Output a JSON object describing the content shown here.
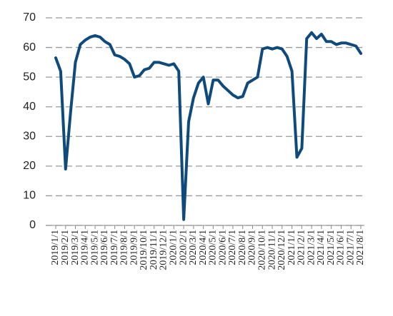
{
  "chart_data": {
    "type": "line",
    "categories": [
      "2019/1/1",
      null,
      "2019/2/1",
      null,
      "2019/3/1",
      null,
      "2019/4/1",
      null,
      "2019/5/1",
      null,
      "2019/6/1",
      null,
      "2019/7/1",
      null,
      "2019/8/1",
      null,
      "2019/9/1",
      null,
      "2019/10/1",
      null,
      "2019/11/1",
      null,
      "2019/12/1",
      null,
      "2020/1/1",
      null,
      "2020/2/1",
      null,
      "2020/3/1",
      null,
      "2020/4/1",
      null,
      "2020/5/1",
      null,
      "2020/6/1",
      null,
      "2020/7/1",
      null,
      "2020/8/1",
      null,
      "2020/9/1",
      null,
      "2020/10/1",
      null,
      "2020/11/1",
      null,
      "2020/12/1",
      null,
      "2021/1/1",
      null,
      "2021/2/1",
      null,
      "2021/3/1",
      null,
      "2021/4/1",
      null,
      "2021/5/1",
      null,
      "2021/6/1",
      null,
      "2021/7/1",
      null,
      "2021/8/1"
    ],
    "series": [
      {
        "color": "#0f4a7d",
        "values": [
          56.5,
          52,
          19,
          38,
          55,
          61,
          62.5,
          63.5,
          64,
          63.5,
          62,
          61,
          57.5,
          57,
          56,
          54.5,
          50,
          50.5,
          52.5,
          53,
          55,
          55,
          54.5,
          54,
          54.5,
          52,
          2,
          35,
          43,
          48,
          50,
          41,
          49,
          49,
          47,
          45.5,
          44,
          43,
          43.5,
          48,
          49,
          50,
          59.5,
          60,
          59.5,
          60,
          59.5,
          57,
          52,
          23,
          26,
          63,
          65,
          63,
          64.5,
          62,
          62,
          61,
          61.5,
          61.5,
          61,
          60.5,
          58
        ]
      }
    ],
    "ylim": [
      0,
      70
    ],
    "yticks": [
      0,
      10,
      20,
      30,
      40,
      50,
      60,
      70
    ],
    "grid": true
  }
}
